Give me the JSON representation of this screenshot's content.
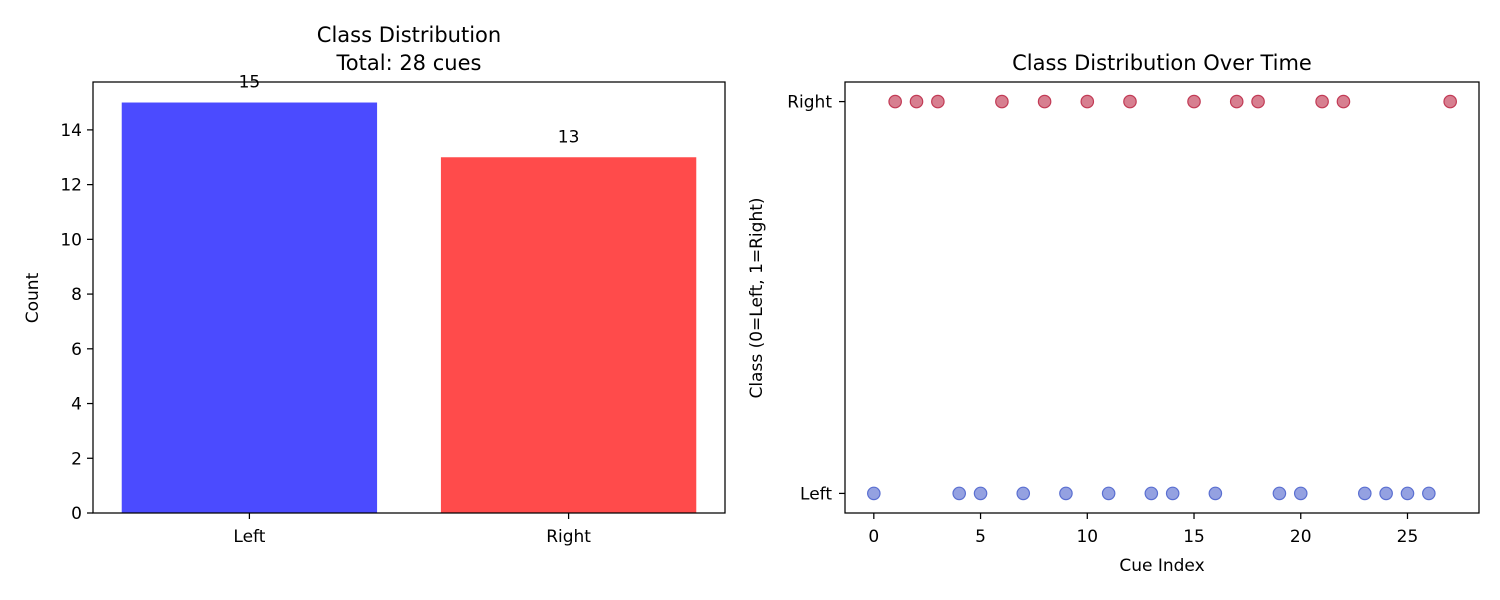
{
  "chart_data": [
    {
      "type": "bar",
      "title": "Class Distribution\nTotal: 28 cues",
      "title_lines": [
        "Class Distribution",
        "Total: 28 cues"
      ],
      "xlabel": "",
      "ylabel": "Count",
      "categories": [
        "Left",
        "Right"
      ],
      "values": [
        15,
        13
      ],
      "data_labels": [
        "15",
        "13"
      ],
      "colors": [
        "#4b4bff",
        "#ff4b4b"
      ],
      "ylim": [
        0,
        15.75
      ],
      "yticks": [
        0,
        2,
        4,
        6,
        8,
        10,
        12,
        14
      ],
      "grid": false
    },
    {
      "type": "scatter",
      "title": "Class Distribution Over Time",
      "xlabel": "Cue Index",
      "ylabel": "Class (0=Left, 1=Right)",
      "x": [
        0,
        1,
        2,
        3,
        4,
        5,
        6,
        7,
        8,
        9,
        10,
        11,
        12,
        13,
        14,
        15,
        16,
        17,
        18,
        19,
        20,
        21,
        22,
        23,
        24,
        25,
        26,
        27
      ],
      "y": [
        0,
        1,
        1,
        1,
        0,
        0,
        1,
        0,
        1,
        0,
        1,
        0,
        1,
        0,
        0,
        1,
        0,
        1,
        1,
        0,
        0,
        1,
        1,
        0,
        0,
        0,
        0,
        1
      ],
      "xlim": [
        -1.35,
        28.35
      ],
      "ylim": [
        -0.05,
        1.05
      ],
      "xticks": [
        0,
        5,
        10,
        15,
        20,
        25
      ],
      "yticks": [
        0,
        1
      ],
      "ytick_labels": [
        "Left",
        "Right"
      ],
      "colors": {
        "left": "#5a6fd1",
        "right": "#c23a55"
      },
      "grid": false
    }
  ]
}
